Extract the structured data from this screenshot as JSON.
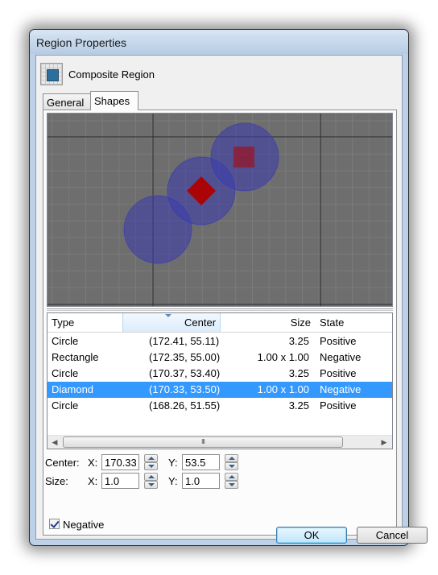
{
  "window": {
    "title": "Region Properties"
  },
  "header": {
    "region_name": "Composite Region",
    "icon": "composite-region-icon"
  },
  "tabs": [
    {
      "label": "General",
      "active": false
    },
    {
      "label": "Shapes",
      "active": true
    }
  ],
  "preview": {
    "background": "#6e6e6e",
    "grid_color": "#7b7b7b",
    "axis_color": "#2a2a2a",
    "positive_color": "#3b3bb0",
    "negative_color": "#b00000"
  },
  "list": {
    "columns": [
      "Type",
      "Center",
      "Size",
      "State"
    ],
    "sorted_column": "Center",
    "rows": [
      {
        "type": "Circle",
        "center": "(172.41, 55.11)",
        "size": "3.25",
        "state": "Positive",
        "selected": false
      },
      {
        "type": "Rectangle",
        "center": "(172.35, 55.00)",
        "size": "1.00 x 1.00",
        "state": "Negative",
        "selected": false
      },
      {
        "type": "Circle",
        "center": "(170.37, 53.40)",
        "size": "3.25",
        "state": "Positive",
        "selected": false
      },
      {
        "type": "Diamond",
        "center": "(170.33, 53.50)",
        "size": "1.00 x 1.00",
        "state": "Negative",
        "selected": true
      },
      {
        "type": "Circle",
        "center": "(168.26, 51.55)",
        "size": "3.25",
        "state": "Positive",
        "selected": false
      }
    ],
    "scroll_grip": "III"
  },
  "editor": {
    "center_label": "Center:",
    "size_label": "Size:",
    "x_label": "X:",
    "y_label": "Y:",
    "center_x": "170.33",
    "center_y": "53.5",
    "size_x": "1.0",
    "size_y": "1.0",
    "negative_label": "Negative",
    "negative_checked": true
  },
  "buttons": {
    "ok": "OK",
    "cancel": "Cancel"
  },
  "colors": {
    "selection": "#3399ff",
    "title_bar": "#bcd0e8"
  }
}
